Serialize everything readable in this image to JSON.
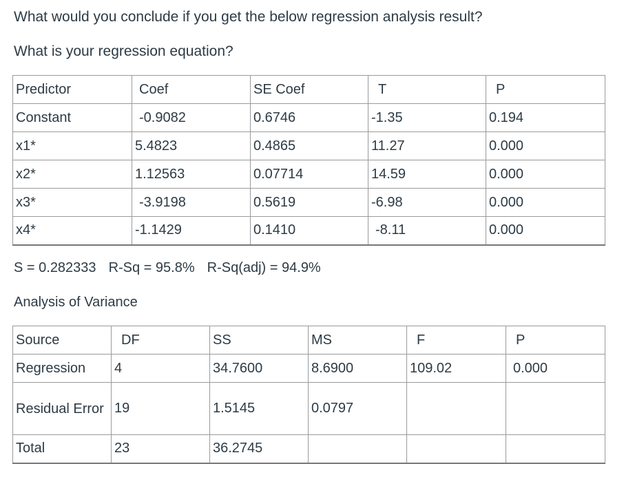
{
  "question": {
    "line1": "What would you conclude if you get the below regression analysis result?",
    "line2": "What is your regression equation?"
  },
  "coefficients": {
    "headers": [
      "Predictor",
      "Coef",
      "SE Coef",
      "T",
      "P"
    ],
    "rows": [
      [
        "Constant",
        "-0.9082",
        "0.6746",
        "-1.35",
        "0.194"
      ],
      [
        "x1*",
        "5.4823",
        "0.4865",
        "11.27",
        "0.000"
      ],
      [
        "x2*",
        "1.12563",
        "0.07714",
        "14.59",
        "0.000"
      ],
      [
        "x3*",
        "-3.9198",
        "0.5619",
        "-6.98",
        "0.000"
      ],
      [
        "x4*",
        "-1.1429",
        "0.1410",
        "-8.11",
        "0.000"
      ]
    ]
  },
  "summary": {
    "s": "S = 0.282333",
    "rsq": "R-Sq = 95.8%",
    "rsq_adj": "R-Sq(adj) = 94.9%"
  },
  "anova": {
    "title": "Analysis of Variance",
    "headers": [
      "Source",
      "DF",
      "SS",
      "MS",
      "F",
      "P"
    ],
    "rows": [
      [
        "Regression",
        "4",
        "34.7600",
        "8.6900",
        "109.02",
        "0.000"
      ],
      [
        "Residual Error",
        "19",
        "1.5145",
        "0.0797",
        "",
        ""
      ],
      [
        "Total",
        "23",
        "36.2745",
        "",
        "",
        ""
      ]
    ]
  }
}
